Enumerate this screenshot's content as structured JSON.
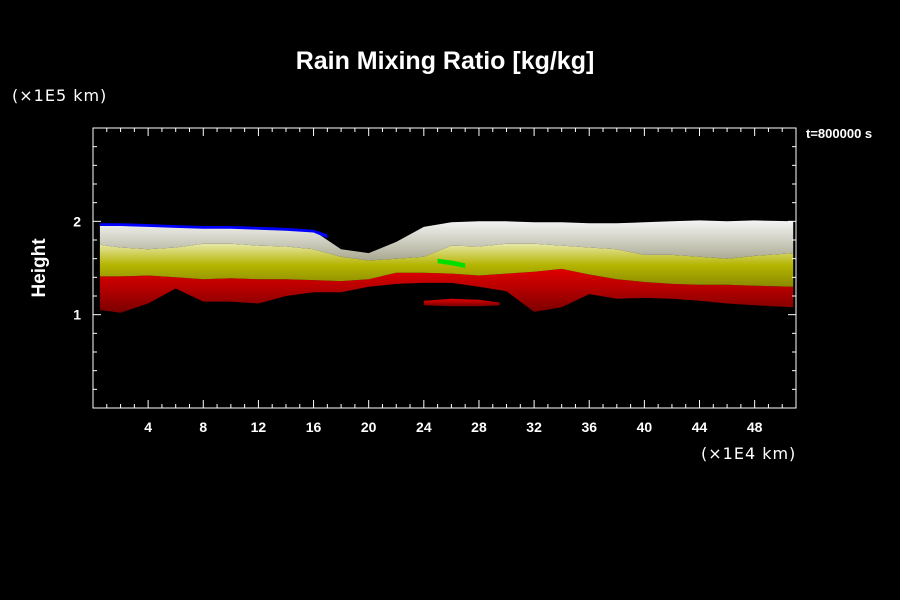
{
  "chart_data": {
    "type": "heatmap",
    "title": "Rain Mixing Ratio [kg/kg]",
    "xlabel": "",
    "ylabel": "Height",
    "x_unit_label": "(×1E4 km)",
    "y_unit_label": "(×1E5 km)",
    "time_label": "t=800000 s",
    "xlim": [
      0,
      51
    ],
    "ylim": [
      0,
      3
    ],
    "x_ticks": [
      4,
      8,
      12,
      16,
      20,
      24,
      28,
      32,
      36,
      40,
      44,
      48
    ],
    "y_ticks": [
      1,
      2
    ],
    "grid": false,
    "layers": [
      {
        "color": "#c00000",
        "x": [
          0.5,
          2,
          4,
          6,
          8,
          10,
          12,
          14,
          16,
          18,
          20,
          22,
          24,
          26,
          28,
          30,
          32,
          34,
          36,
          38,
          40,
          42,
          44,
          46,
          48,
          50.8
        ],
        "top": [
          1.41,
          1.41,
          1.42,
          1.4,
          1.38,
          1.39,
          1.38,
          1.38,
          1.37,
          1.36,
          1.38,
          1.45,
          1.45,
          1.44,
          1.42,
          1.44,
          1.46,
          1.49,
          1.43,
          1.38,
          1.35,
          1.33,
          1.32,
          1.32,
          1.31,
          1.3
        ],
        "bottom": [
          1.05,
          1.02,
          1.12,
          1.28,
          1.14,
          1.14,
          1.12,
          1.2,
          1.24,
          1.24,
          1.3,
          1.33,
          1.34,
          1.34,
          1.3,
          1.25,
          1.03,
          1.08,
          1.22,
          1.17,
          1.18,
          1.17,
          1.15,
          1.12,
          1.1,
          1.08
        ]
      },
      {
        "color": "#b0b000",
        "x": [
          0.5,
          2,
          4,
          6,
          8,
          10,
          12,
          14,
          16,
          18,
          20,
          22,
          24,
          26,
          28,
          30,
          32,
          34,
          36,
          38,
          40,
          42,
          44,
          46,
          48,
          50.8
        ],
        "top": [
          1.75,
          1.72,
          1.7,
          1.72,
          1.76,
          1.76,
          1.74,
          1.73,
          1.7,
          1.62,
          1.58,
          1.6,
          1.62,
          1.74,
          1.73,
          1.76,
          1.76,
          1.74,
          1.72,
          1.7,
          1.64,
          1.64,
          1.62,
          1.6,
          1.63,
          1.66
        ],
        "bottom": [
          1.41,
          1.41,
          1.42,
          1.4,
          1.38,
          1.39,
          1.38,
          1.38,
          1.37,
          1.36,
          1.38,
          1.45,
          1.45,
          1.44,
          1.42,
          1.44,
          1.46,
          1.49,
          1.43,
          1.38,
          1.35,
          1.33,
          1.32,
          1.32,
          1.31,
          1.3
        ]
      },
      {
        "color": "#c8c8b4",
        "x": [
          0.5,
          2,
          4,
          6,
          8,
          10,
          12,
          14,
          16,
          18,
          20,
          22,
          24,
          26,
          28,
          30,
          32,
          34,
          36,
          38,
          40,
          42,
          44,
          46,
          48,
          50.8
        ],
        "top": [
          1.97,
          1.96,
          1.96,
          1.95,
          1.94,
          1.94,
          1.93,
          1.92,
          1.9,
          1.7,
          1.66,
          1.78,
          1.94,
          1.99,
          2.0,
          2.0,
          1.99,
          1.99,
          1.98,
          1.98,
          1.99,
          2.0,
          2.01,
          2.0,
          2.01,
          2.0
        ],
        "bottom": [
          1.75,
          1.72,
          1.7,
          1.72,
          1.76,
          1.76,
          1.74,
          1.73,
          1.7,
          1.62,
          1.58,
          1.6,
          1.62,
          1.74,
          1.73,
          1.76,
          1.76,
          1.74,
          1.72,
          1.7,
          1.64,
          1.64,
          1.62,
          1.6,
          1.63,
          1.66
        ]
      },
      {
        "color": "#c00000",
        "x": [
          24,
          26,
          28,
          29.5
        ],
        "top": [
          1.15,
          1.17,
          1.16,
          1.13
        ],
        "bottom": [
          1.1,
          1.09,
          1.09,
          1.1
        ]
      }
    ],
    "accents": [
      {
        "color": "#0000ff",
        "x": [
          0.5,
          2,
          4,
          6,
          8,
          10,
          12,
          14,
          16,
          17
        ],
        "top": [
          1.98,
          1.98,
          1.97,
          1.96,
          1.95,
          1.95,
          1.94,
          1.93,
          1.91,
          1.86
        ],
        "bottom": [
          1.95,
          1.95,
          1.94,
          1.93,
          1.92,
          1.92,
          1.91,
          1.9,
          1.88,
          1.82
        ]
      },
      {
        "color": "#00e000",
        "x": [
          25,
          26,
          27
        ],
        "top": [
          1.6,
          1.58,
          1.55
        ],
        "bottom": [
          1.55,
          1.53,
          1.5
        ]
      }
    ]
  }
}
